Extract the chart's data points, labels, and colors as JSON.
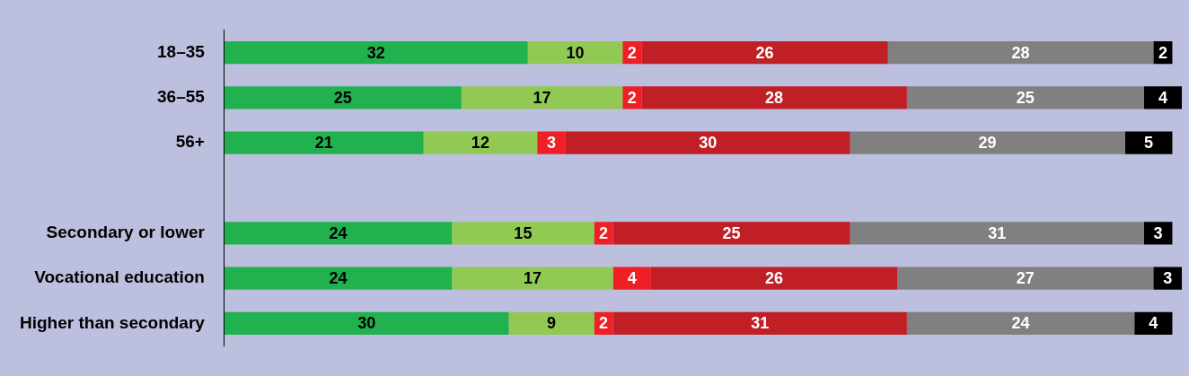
{
  "chart_data": {
    "type": "bar",
    "orientation": "horizontal",
    "stacked": true,
    "data_labels": true,
    "legend": false,
    "tick_labels": "y",
    "categories": [
      "18–35",
      "36–55",
      "56+",
      null,
      "Secondary or lower",
      "Vocational education",
      "Higher than secondary"
    ],
    "series": [
      {
        "color": "#21b14f",
        "values": [
          32,
          25,
          21,
          null,
          24,
          24,
          30
        ]
      },
      {
        "color": "#92c954",
        "values": [
          10,
          17,
          12,
          null,
          15,
          17,
          9
        ]
      },
      {
        "color": "#ee1f25",
        "values": [
          2,
          2,
          3,
          null,
          2,
          4,
          2
        ]
      },
      {
        "color": "#c01f26",
        "values": [
          26,
          28,
          30,
          null,
          25,
          26,
          31
        ]
      },
      {
        "color": "#808080",
        "values": [
          28,
          25,
          29,
          null,
          31,
          27,
          24
        ]
      },
      {
        "color": "#000000",
        "values": [
          2,
          4,
          5,
          null,
          3,
          3,
          4
        ]
      }
    ]
  }
}
